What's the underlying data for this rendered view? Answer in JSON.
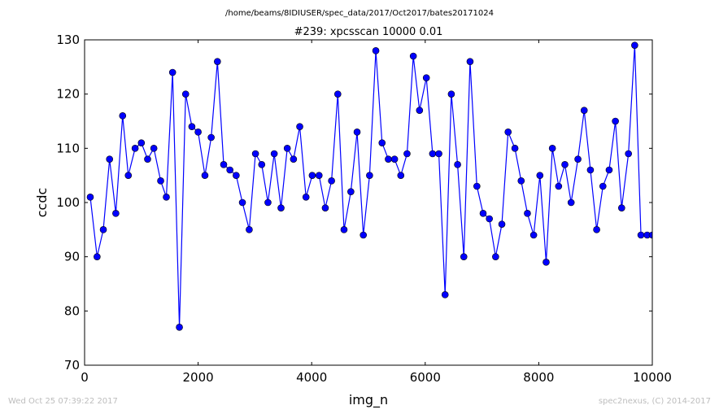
{
  "header": {
    "suptitle": "/home/beams/8IDIUSER/spec_data/2017/Oct2017/bates20171024"
  },
  "footer": {
    "timestamp": "Wed Oct 25 07:39:22 2017",
    "credit": "spec2nexus, (C) 2014-2017"
  },
  "chart_data": {
    "type": "line",
    "title": "#239: xpcsscan 10000 0.01",
    "xlabel": "img_n",
    "ylabel": "ccdc",
    "xlim": [
      0,
      10000
    ],
    "ylim": [
      70,
      130
    ],
    "xticks": [
      0,
      2000,
      4000,
      6000,
      8000,
      10000
    ],
    "yticks": [
      70,
      80,
      90,
      100,
      110,
      120,
      130
    ],
    "grid": false,
    "marker": "circle",
    "color": "#0000ff",
    "series": [
      {
        "name": "",
        "x": [
          100,
          220,
          330,
          440,
          550,
          670,
          770,
          890,
          1000,
          1110,
          1220,
          1340,
          1440,
          1550,
          1670,
          1780,
          1890,
          2000,
          2120,
          2230,
          2340,
          2450,
          2560,
          2670,
          2780,
          2900,
          3010,
          3120,
          3230,
          3340,
          3460,
          3570,
          3680,
          3790,
          3900,
          4010,
          4130,
          4240,
          4350,
          4460,
          4570,
          4690,
          4800,
          4910,
          5020,
          5130,
          5240,
          5350,
          5460,
          5570,
          5680,
          5790,
          5900,
          6020,
          6130,
          6240,
          6350,
          6460,
          6570,
          6680,
          6790,
          6910,
          7020,
          7130,
          7240,
          7350,
          7460,
          7580,
          7690,
          7800,
          7910,
          8020,
          8130,
          8240,
          8350,
          8460,
          8570,
          8690,
          8800,
          8910,
          9020,
          9130,
          9240,
          9350,
          9460,
          9580,
          9690,
          9800,
          9910,
          10000
        ],
        "y": [
          101,
          90,
          95,
          108,
          98,
          116,
          105,
          110,
          111,
          108,
          110,
          104,
          101,
          124,
          77,
          120,
          114,
          113,
          105,
          112,
          126,
          107,
          106,
          105,
          100,
          95,
          109,
          107,
          100,
          109,
          99,
          110,
          108,
          114,
          101,
          105,
          105,
          99,
          104,
          120,
          95,
          102,
          113,
          94,
          105,
          128,
          111,
          108,
          108,
          105,
          109,
          127,
          117,
          123,
          109,
          109,
          83,
          120,
          107,
          90,
          126,
          103,
          98,
          97,
          90,
          96,
          113,
          110,
          104,
          98,
          94,
          105,
          89,
          110,
          103,
          107,
          100,
          108,
          117,
          106,
          95,
          103,
          106,
          115,
          99,
          109,
          129,
          94,
          94,
          94
        ]
      }
    ]
  }
}
